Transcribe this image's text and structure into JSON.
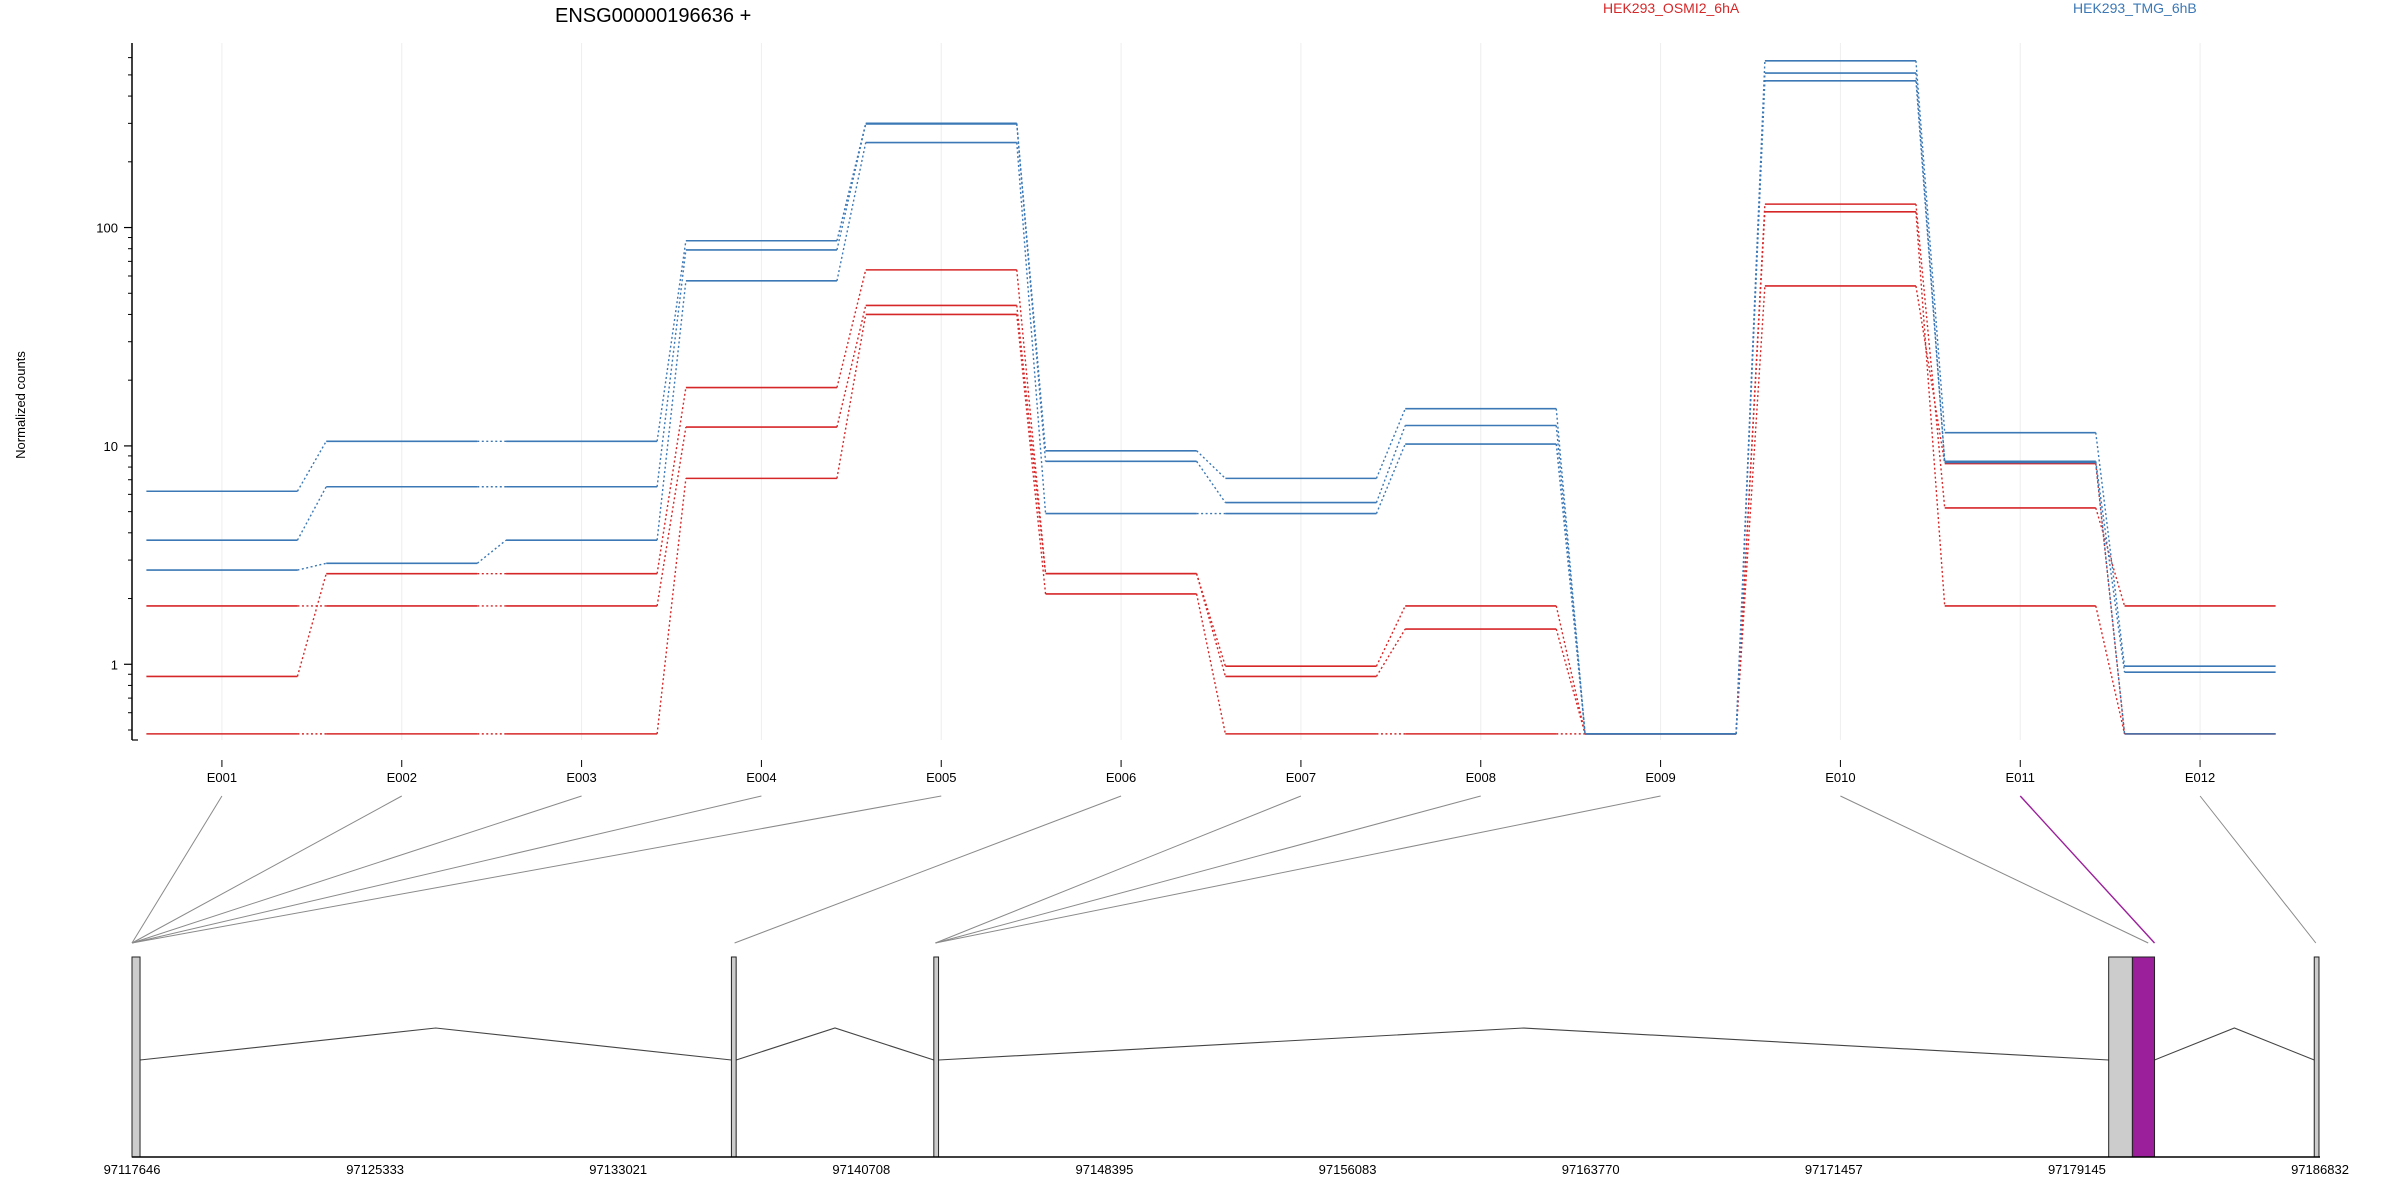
{
  "chart_data": {
    "type": "line",
    "title": "ENSG00000196636 +",
    "ylabel": "Normalized counts",
    "yscale": "log",
    "ylim": [
      0.45,
      700
    ],
    "yticks": [
      1,
      10,
      100
    ],
    "ytick_labels": [
      "1",
      "10",
      "100"
    ],
    "categories": [
      "E001",
      "E002",
      "E003",
      "E004",
      "E005",
      "E006",
      "E007",
      "E008",
      "E009",
      "E010",
      "E011",
      "E012"
    ],
    "legend": [
      {
        "name": "HEK293_OSMI2_6hA",
        "color": "#d62728"
      },
      {
        "name": "HEK293_TMG_6hB",
        "color": "#3b78b5"
      }
    ],
    "series": [
      {
        "group": "HEK293_OSMI2_6hA",
        "color": "#d62728",
        "values": [
          0.88,
          2.6,
          2.6,
          18.5,
          64,
          2.6,
          0.98,
          1.85,
          0.48,
          128,
          5.2,
          1.85
        ]
      },
      {
        "group": "HEK293_OSMI2_6hA",
        "color": "#d62728",
        "values": [
          1.85,
          1.85,
          1.85,
          12.2,
          44,
          2.6,
          0.88,
          1.45,
          0.48,
          118,
          1.85,
          0.48
        ]
      },
      {
        "group": "HEK293_OSMI2_6hA",
        "color": "#d62728",
        "values": [
          0.48,
          0.48,
          0.48,
          7.1,
          40,
          2.1,
          0.48,
          0.48,
          0.48,
          54,
          8.3,
          0.48
        ]
      },
      {
        "group": "HEK293_TMG_6hB",
        "color": "#3b78b5",
        "values": [
          6.2,
          10.5,
          10.5,
          87,
          300,
          9.5,
          7.1,
          14.8,
          0.48,
          580,
          11.5,
          0.98
        ]
      },
      {
        "group": "HEK293_TMG_6hB",
        "color": "#3b78b5",
        "values": [
          3.7,
          6.5,
          6.5,
          79,
          298,
          8.5,
          5.5,
          12.4,
          0.48,
          510,
          8.5,
          0.92
        ]
      },
      {
        "group": "HEK293_TMG_6hB",
        "color": "#3b78b5",
        "values": [
          2.7,
          2.9,
          3.7,
          57,
          245,
          4.9,
          4.9,
          10.2,
          0.48,
          470,
          8.4,
          0.48
        ]
      }
    ],
    "genomic_axis": {
      "range": [
        97117646,
        97186832
      ],
      "tick_labels": [
        "97117646",
        "97125333",
        "97133021",
        "97140708",
        "97148395",
        "97156083",
        "97163770",
        "97171457",
        "97179145",
        "97186832"
      ]
    },
    "exon_connectors": [
      {
        "exon": "E001",
        "coord": 97117646
      },
      {
        "exon": "E002",
        "coord": 97117646
      },
      {
        "exon": "E003",
        "coord": 97117646
      },
      {
        "exon": "E004",
        "coord": 97117646
      },
      {
        "exon": "E005",
        "coord": 97117646
      },
      {
        "exon": "E006",
        "coord": 97136700
      },
      {
        "exon": "E007",
        "coord": 97143050
      },
      {
        "exon": "E008",
        "coord": 97143050
      },
      {
        "exon": "E009",
        "coord": 97143050
      },
      {
        "exon": "E010",
        "coord": 97181400
      },
      {
        "exon": "E011",
        "coord": 97181600,
        "highlight": true
      },
      {
        "exon": "E012",
        "coord": 97186700
      }
    ],
    "gene_model": {
      "exons": [
        {
          "start": 97117646,
          "end": 97117900
        },
        {
          "start": 97136600,
          "end": 97136750
        },
        {
          "start": 97143000,
          "end": 97143150
        },
        {
          "start": 97180150,
          "end": 97180900
        },
        {
          "start": 97180900,
          "end": 97181600,
          "highlight": true
        },
        {
          "start": 97186650,
          "end": 97186800
        }
      ],
      "introns": [
        {
          "from": 97117900,
          "to": 97136600
        },
        {
          "from": 97136750,
          "to": 97143000
        },
        {
          "from": 97143150,
          "to": 97180150
        },
        {
          "from": 97181600,
          "to": 97186650
        }
      ]
    },
    "colors": {
      "osmi": "#d62728",
      "tmg": "#3b78b5",
      "connector": "#8a8a8a",
      "highlight": "#9b1f9b",
      "exon_fill": "#cccccc"
    }
  }
}
